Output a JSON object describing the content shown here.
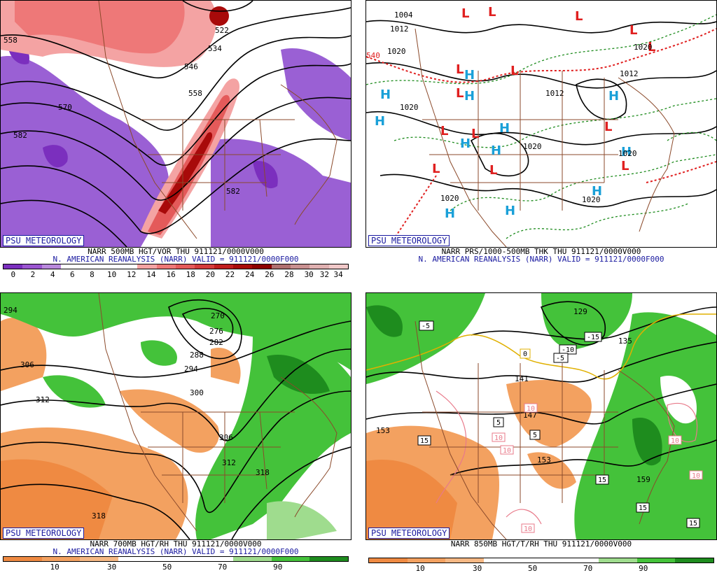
{
  "panels": [
    {
      "id": "p1",
      "brand": "PSU METEOROLOGY",
      "line1": "NARR 500MB HGT/VOR THU 911121/0000V000",
      "line2": "N. AMERICAN REANALYSIS (NARR) VALID = 911121/0000F000",
      "colorbar": [
        "#7b2fbe",
        "#9a55d0",
        "#b888dc",
        "#ffffff",
        "#ffffff",
        "#ffffff",
        "#ffffff",
        "#f4a3a3",
        "#ee7878",
        "#e45a5a",
        "#d43c3c",
        "#c01e1e",
        "#a80a0a",
        "#8c0000",
        "#b07070",
        "#c89090",
        "#dfb0b0",
        "#f0c8c8"
      ],
      "ticks": [
        "0",
        "2",
        "4",
        "6",
        "8",
        "10",
        "12",
        "14",
        "16",
        "18",
        "20",
        "22",
        "24",
        "26",
        "28",
        "30",
        "32",
        "34"
      ],
      "contour_labels": [
        "522",
        "534",
        "546",
        "558",
        "570",
        "582",
        "582",
        "558"
      ]
    },
    {
      "id": "p2",
      "brand": "PSU METEOROLOGY",
      "line1": "NARR PRS/1000-500MB THK THU 911121/0000V000",
      "line2": "N. AMERICAN REANALYSIS (NARR) VALID = 911121/0000F000",
      "contour_labels": [
        "1004",
        "1012",
        "1020",
        "1020",
        "1012",
        "1020",
        "1020",
        "1012",
        "1020",
        "1020",
        "1020",
        "540"
      ],
      "pressure_centers": [
        {
          "t": "L",
          "c": "#e02020"
        },
        {
          "t": "L",
          "c": "#e02020"
        },
        {
          "t": "L",
          "c": "#e02020"
        },
        {
          "t": "L",
          "c": "#e02020"
        },
        {
          "t": "L",
          "c": "#e02020"
        },
        {
          "t": "L",
          "c": "#e02020"
        },
        {
          "t": "L",
          "c": "#e02020"
        },
        {
          "t": "L",
          "c": "#e02020"
        },
        {
          "t": "L",
          "c": "#e02020"
        },
        {
          "t": "L",
          "c": "#e02020"
        },
        {
          "t": "L",
          "c": "#e02020"
        },
        {
          "t": "L",
          "c": "#e02020"
        },
        {
          "t": "L",
          "c": "#e02020"
        },
        {
          "t": "L",
          "c": "#e02020"
        },
        {
          "t": "H",
          "c": "#1aa0d8"
        },
        {
          "t": "H",
          "c": "#1aa0d8"
        },
        {
          "t": "H",
          "c": "#1aa0d8"
        },
        {
          "t": "H",
          "c": "#1aa0d8"
        },
        {
          "t": "H",
          "c": "#1aa0d8"
        },
        {
          "t": "H",
          "c": "#1aa0d8"
        },
        {
          "t": "H",
          "c": "#1aa0d8"
        },
        {
          "t": "H",
          "c": "#1aa0d8"
        },
        {
          "t": "H",
          "c": "#1aa0d8"
        },
        {
          "t": "H",
          "c": "#1aa0d8"
        },
        {
          "t": "H",
          "c": "#1aa0d8"
        },
        {
          "t": "H",
          "c": "#1aa0d8"
        }
      ]
    },
    {
      "id": "p3",
      "brand": "PSU METEOROLOGY",
      "line1": "NARR 700MB HGT/RH THU 911121/0000V000",
      "line2": "N. AMERICAN REANALYSIS (NARR) VALID = 911121/0000F000",
      "colorbar": [
        "#ef8a42",
        "#f3a160",
        "#f6b884",
        "#ffffff",
        "#ffffff",
        "#ffffff",
        "#9fdc8e",
        "#44c23a",
        "#1e8c1e"
      ],
      "ticks": [
        "10",
        "30",
        "50",
        "70",
        "90"
      ],
      "contour_labels": [
        "294",
        "306",
        "312",
        "270",
        "276",
        "282",
        "288",
        "294",
        "300",
        "306",
        "312",
        "318",
        "318"
      ]
    },
    {
      "id": "p4",
      "brand": "PSU METEOROLOGY",
      "line1": "NARR 850MB HGT/T/RH THU 911121/0000V000",
      "line2": "",
      "colorbar": [
        "#ef8a42",
        "#f3a160",
        "#f6b884",
        "#ffffff",
        "#ffffff",
        "#ffffff",
        "#9fdc8e",
        "#44c23a",
        "#1e8c1e"
      ],
      "ticks": [
        "10",
        "30",
        "50",
        "70",
        "90"
      ],
      "contour_labels": [
        "129",
        "135",
        "141",
        "147",
        "153",
        "159",
        "153"
      ],
      "temp_boxes": [
        "-5",
        "-15",
        "-10",
        "-5",
        "0",
        "5",
        "5",
        "15",
        "15",
        "15",
        "15"
      ],
      "pink_labels": [
        "10",
        "10",
        "10",
        "10",
        "10",
        "10"
      ]
    }
  ]
}
